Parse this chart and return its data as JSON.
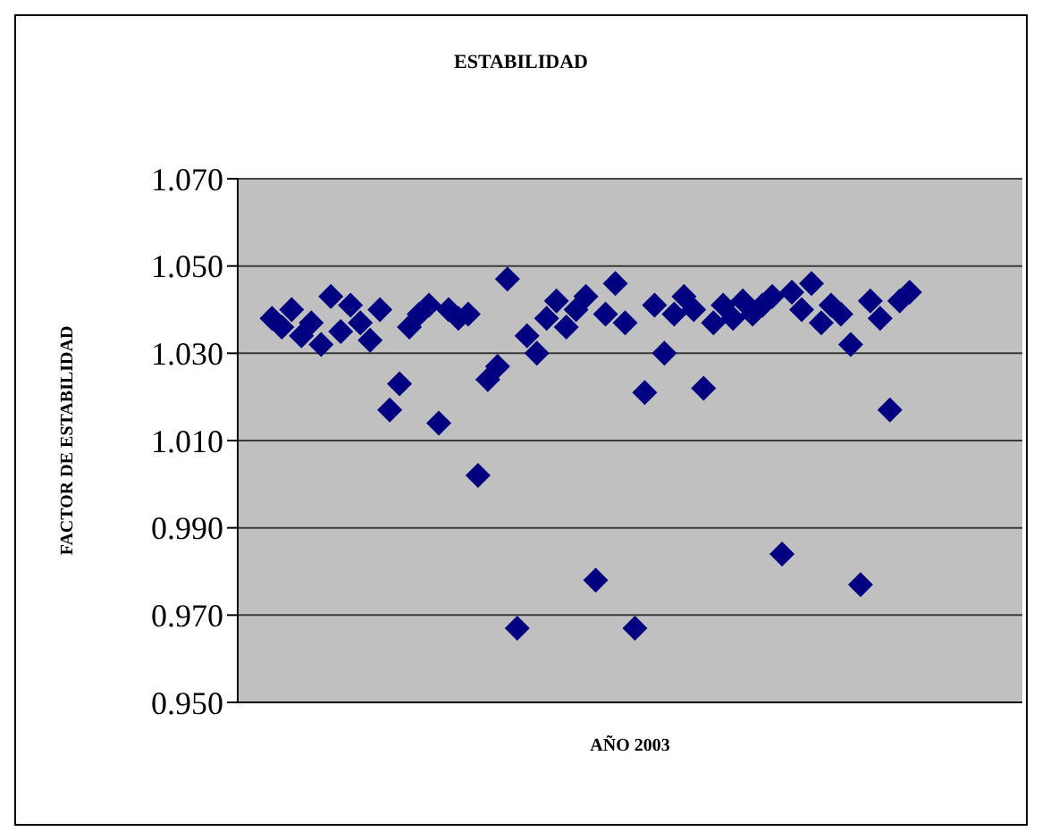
{
  "chart_data": {
    "type": "scatter",
    "title": "ESTABILIDAD",
    "xlabel": "AÑO 2003",
    "ylabel": "FACTOR DE ESTABILIDAD",
    "categories": [
      null,
      null,
      null,
      null,
      null,
      null,
      null,
      null,
      null,
      null,
      null,
      null,
      null,
      null,
      null,
      null,
      null,
      null,
      null,
      null,
      null,
      null,
      null,
      null,
      null,
      null,
      null,
      null,
      null,
      null,
      null,
      null,
      null,
      null,
      null,
      null,
      null,
      null,
      null,
      null,
      null,
      null,
      null,
      null,
      null,
      null,
      null,
      null,
      null,
      null,
      null,
      null,
      null,
      null,
      null,
      null,
      null,
      null,
      null,
      null,
      null,
      null,
      null,
      null,
      null,
      null,
      null,
      null,
      null,
      null,
      null,
      null,
      null,
      null,
      null,
      null,
      null,
      null,
      null,
      null
    ],
    "series": [
      {
        "color": "#000080",
        "values": [
          null,
          null,
          null,
          1.038,
          1.036,
          1.04,
          1.034,
          1.037,
          1.032,
          1.043,
          1.035,
          1.041,
          1.037,
          1.033,
          1.04,
          1.017,
          1.023,
          1.036,
          1.039,
          1.041,
          1.014,
          1.04,
          1.038,
          1.039,
          1.002,
          1.024,
          1.027,
          1.047,
          0.967,
          1.034,
          1.03,
          1.038,
          1.042,
          1.036,
          1.04,
          1.043,
          0.978,
          1.039,
          1.046,
          1.037,
          0.967,
          1.021,
          1.041,
          1.03,
          1.039,
          1.043,
          1.04,
          1.022,
          1.037,
          1.041,
          1.038,
          1.042,
          1.039,
          1.041,
          1.043,
          0.984,
          1.044,
          1.04,
          1.046,
          1.037,
          1.041,
          1.039,
          1.032,
          0.977,
          1.042,
          1.038,
          1.017,
          1.042,
          1.044,
          null,
          null,
          null,
          null,
          null,
          null,
          null,
          null,
          null,
          null,
          null
        ]
      }
    ],
    "ylim": [
      0.95,
      1.07
    ],
    "yticks": [
      {
        "value": 0.95,
        "label": "0.950"
      },
      {
        "value": 0.97,
        "label": "0.970"
      },
      {
        "value": 0.99,
        "label": "0.990"
      },
      {
        "value": 1.01,
        "label": "1.010"
      },
      {
        "value": 1.03,
        "label": "1.030"
      },
      {
        "value": 1.05,
        "label": "1.050"
      },
      {
        "value": 1.07,
        "label": "1.070"
      }
    ],
    "grid": "y",
    "marker": "diamond",
    "tick_labels": "y"
  }
}
